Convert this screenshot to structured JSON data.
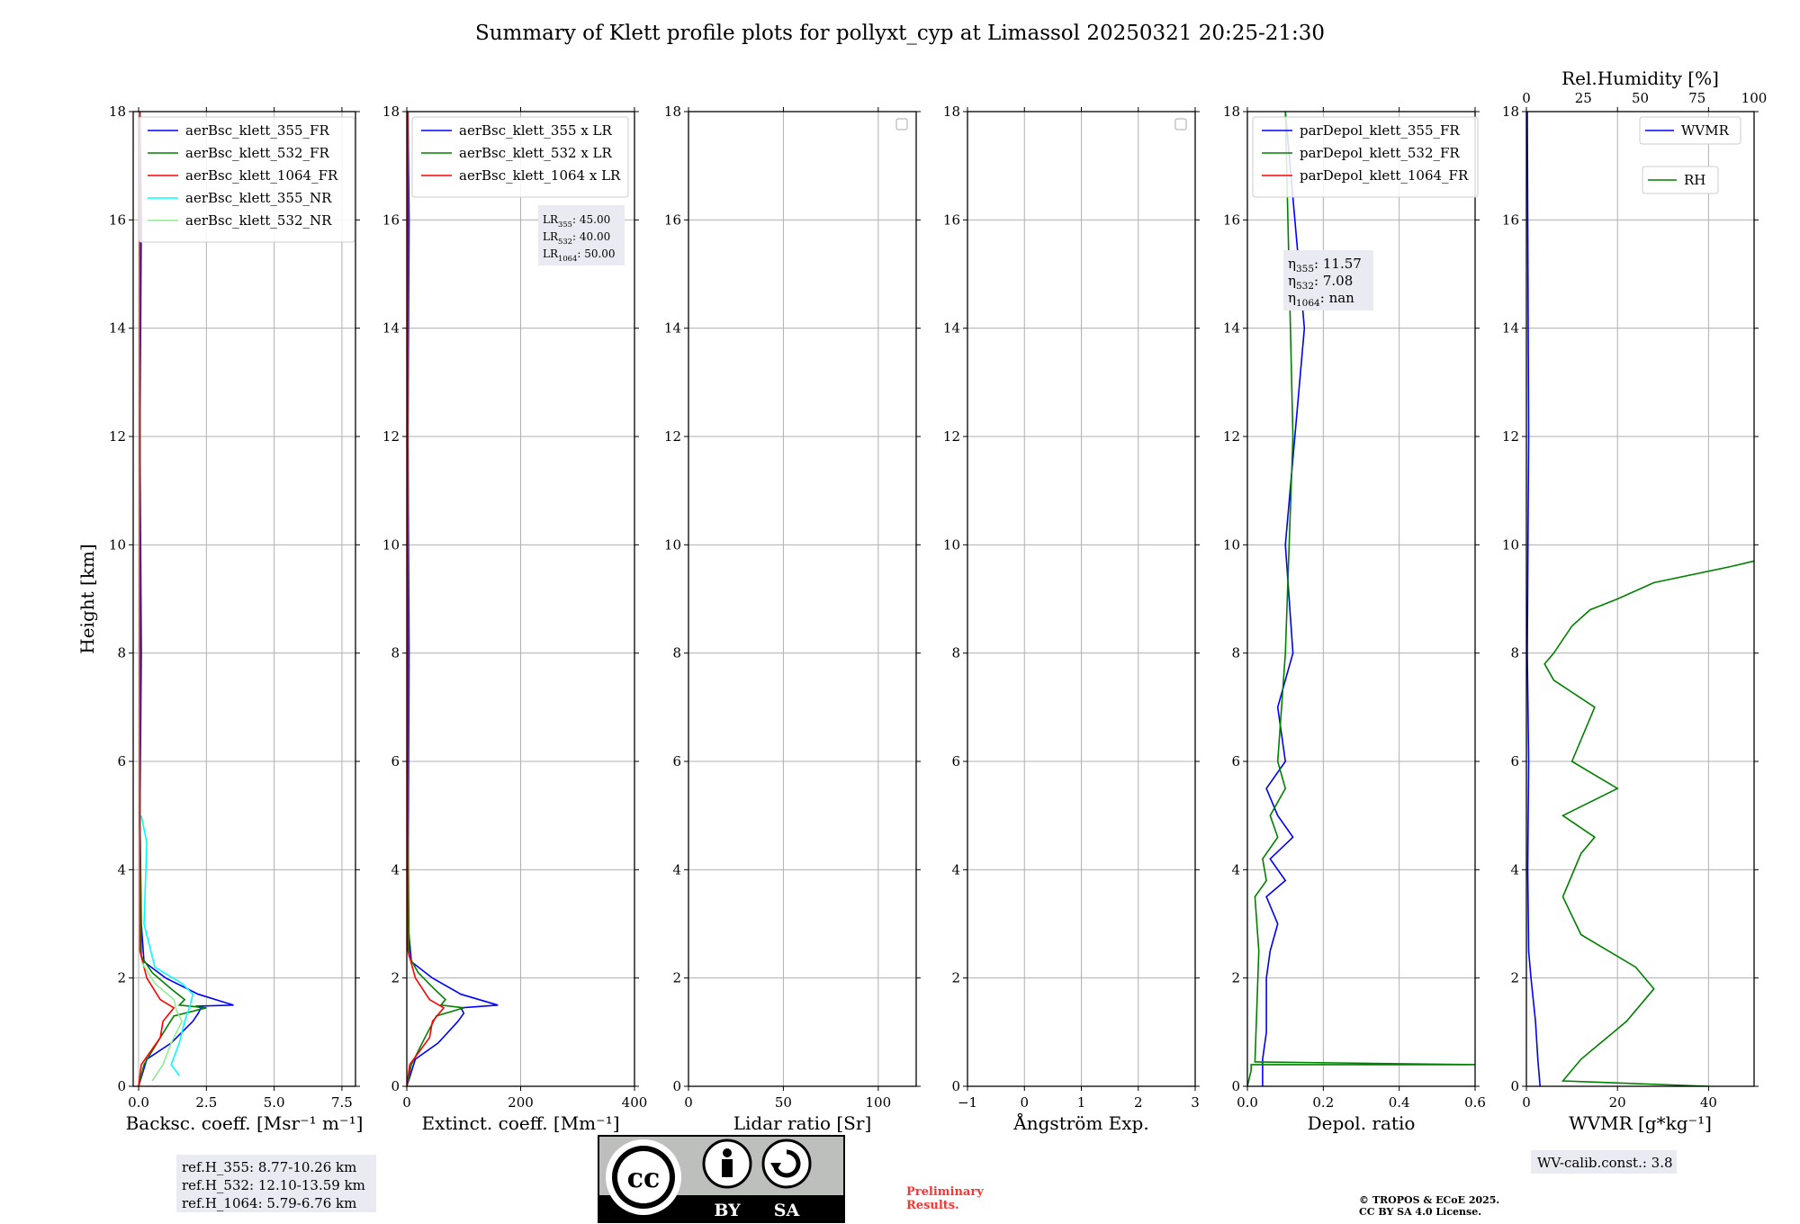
{
  "title": "Summary of Klett profile plots for pollyxt_cyp at Limassol 20250321 20:25-21:30",
  "colors": {
    "blue": "#0000ff",
    "green": "#008000",
    "red": "#ff0000",
    "cyan": "#00ffff",
    "lightgreen": "#90ee90",
    "grid": "#b0b0b0",
    "box": "#eaeaf2"
  },
  "chart_data": [
    {
      "type": "line",
      "name_key": "backscatter",
      "xlabel": "Backsc. coeff. [Msr⁻¹ m⁻¹]",
      "ylabel": "Height [km]",
      "xlim": [
        -0.2,
        8.0
      ],
      "ylim": [
        0,
        18
      ],
      "xticks": [
        0,
        2.5,
        5.0,
        7.5
      ],
      "xtick_labels": [
        "0.0",
        "2.5",
        "5.0",
        "7.5"
      ],
      "yticks": [
        0,
        2,
        4,
        6,
        8,
        10,
        12,
        14,
        16,
        18
      ],
      "grid": true,
      "legend": "upper-left",
      "series": [
        {
          "name": "aerBsc_klett_355_FR",
          "color": "#0000ff",
          "x": [
            0.0,
            0.3,
            1.2,
            2.0,
            2.2,
            2.3,
            2.1,
            3.5,
            2.2,
            1.0,
            0.2,
            0.1,
            0.05,
            0.1,
            0.05,
            0.1,
            0.05
          ],
          "y": [
            0.0,
            0.5,
            0.8,
            1.2,
            1.35,
            1.45,
            1.48,
            1.5,
            1.7,
            2.0,
            2.3,
            3.0,
            5.0,
            8.0,
            12.0,
            16.0,
            18.0
          ]
        },
        {
          "name": "aerBsc_klett_532_FR",
          "color": "#008000",
          "x": [
            0.0,
            0.2,
            0.8,
            1.3,
            2.5,
            1.5,
            1.7,
            1.2,
            0.5,
            0.1,
            0.05,
            0.05
          ],
          "y": [
            0.0,
            0.4,
            0.9,
            1.3,
            1.45,
            1.5,
            1.6,
            1.8,
            2.1,
            2.4,
            5.0,
            18.0
          ]
        },
        {
          "name": "aerBsc_klett_1064_FR",
          "color": "#ff0000",
          "x": [
            0.0,
            0.1,
            0.8,
            0.9,
            1.3,
            0.8,
            0.3,
            0.05,
            0.05
          ],
          "y": [
            0.0,
            0.4,
            0.9,
            1.2,
            1.45,
            1.6,
            2.0,
            2.5,
            18.0
          ]
        },
        {
          "name": "aerBsc_klett_355_NR",
          "color": "#00ffff",
          "x": [
            1.5,
            1.2,
            1.5,
            1.7,
            1.9,
            2.0,
            1.6,
            0.6,
            0.2,
            0.3,
            0.1
          ],
          "y": [
            0.2,
            0.4,
            0.8,
            1.2,
            1.5,
            1.7,
            1.9,
            2.2,
            3.0,
            4.5,
            5.0
          ]
        },
        {
          "name": "aerBsc_klett_532_NR",
          "color": "#90ee90",
          "x": [
            0.5,
            0.9,
            1.2,
            1.6,
            1.4,
            1.3,
            0.6,
            0.1
          ],
          "y": [
            0.1,
            0.4,
            0.8,
            1.2,
            1.4,
            1.6,
            1.9,
            2.3
          ]
        }
      ],
      "annotation": [
        "ref.H_355: 8.77-10.26 km",
        "ref.H_532: 12.10-13.59 km",
        "ref.H_1064: 5.79-6.76 km"
      ]
    },
    {
      "type": "line",
      "name_key": "extinction",
      "xlabel": "Extinct. coeff. [Mm⁻¹]",
      "xlim": [
        0,
        400
      ],
      "ylim": [
        0,
        18
      ],
      "xticks": [
        0,
        200,
        400
      ],
      "xtick_labels": [
        "0",
        "200",
        "400"
      ],
      "yticks": [
        0,
        2,
        4,
        6,
        8,
        10,
        12,
        14,
        16,
        18
      ],
      "grid": true,
      "legend": "upper-left",
      "series": [
        {
          "name": "aerBsc_klett_355 x LR",
          "color": "#0000ff",
          "x": [
            0,
            15,
            55,
            90,
            100,
            95,
            160,
            95,
            45,
            8,
            2,
            4,
            2,
            4,
            2
          ],
          "y": [
            0.0,
            0.5,
            0.8,
            1.2,
            1.35,
            1.45,
            1.5,
            1.7,
            2.0,
            2.3,
            3.0,
            8.0,
            12.0,
            16.0,
            18.0
          ]
        },
        {
          "name": "aerBsc_klett_532 x LR",
          "color": "#008000",
          "x": [
            0,
            8,
            32,
            52,
            100,
            60,
            68,
            48,
            20,
            4,
            2,
            2
          ],
          "y": [
            0.0,
            0.4,
            0.9,
            1.3,
            1.45,
            1.5,
            1.6,
            1.8,
            2.1,
            2.4,
            5.0,
            18.0
          ]
        },
        {
          "name": "aerBsc_klett_1064 x LR",
          "color": "#ff0000",
          "x": [
            0,
            5,
            40,
            45,
            65,
            40,
            15,
            2,
            2
          ],
          "y": [
            0.0,
            0.4,
            0.9,
            1.2,
            1.45,
            1.6,
            2.0,
            2.5,
            18.0
          ]
        }
      ],
      "lr_text": [
        {
          "sub": "355",
          "value": "45.00"
        },
        {
          "sub": "532",
          "value": "40.00"
        },
        {
          "sub": "1064",
          "value": "50.00"
        }
      ]
    },
    {
      "type": "line",
      "name_key": "lidar_ratio",
      "xlabel": "Lidar ratio [Sr]",
      "xlim": [
        0,
        120
      ],
      "ylim": [
        0,
        18
      ],
      "xticks": [
        0,
        50,
        100
      ],
      "xtick_labels": [
        "0",
        "50",
        "100"
      ],
      "yticks": [
        0,
        2,
        4,
        6,
        8,
        10,
        12,
        14,
        16,
        18
      ],
      "grid": true,
      "series": []
    },
    {
      "type": "line",
      "name_key": "angstrom",
      "xlabel": "Ångström Exp.",
      "xlim": [
        -1,
        3
      ],
      "ylim": [
        0,
        18
      ],
      "xticks": [
        -1,
        0,
        1,
        2,
        3
      ],
      "xtick_labels": [
        "−1",
        "0",
        "1",
        "2",
        "3"
      ],
      "yticks": [
        0,
        2,
        4,
        6,
        8,
        10,
        12,
        14,
        16,
        18
      ],
      "grid": true,
      "series": []
    },
    {
      "type": "line",
      "name_key": "depol",
      "xlabel": "Depol. ratio",
      "xlim": [
        0,
        0.6
      ],
      "ylim": [
        0,
        18
      ],
      "xticks": [
        0,
        0.2,
        0.4,
        0.6
      ],
      "xtick_labels": [
        "0.0",
        "0.2",
        "0.4",
        "0.6"
      ],
      "yticks": [
        0,
        2,
        4,
        6,
        8,
        10,
        12,
        14,
        16,
        18
      ],
      "grid": true,
      "legend": "upper-left",
      "series": [
        {
          "name": "parDepol_klett_355_FR",
          "color": "#0000ff",
          "x": [
            0.04,
            0.04,
            0.05,
            0.05,
            0.06,
            0.08,
            0.05,
            0.1,
            0.06,
            0.12,
            0.08,
            0.05,
            0.1,
            0.08,
            0.12,
            0.1,
            0.15,
            0.1
          ],
          "y": [
            0.0,
            0.5,
            1.0,
            2.0,
            2.5,
            3.0,
            3.5,
            3.8,
            4.2,
            4.6,
            5.0,
            5.5,
            6.0,
            7.0,
            8.0,
            10.0,
            14.0,
            18.0
          ]
        },
        {
          "name": "parDepol_klett_532_FR",
          "color": "#008000",
          "x": [
            0.0,
            0.01,
            0.01,
            0.6,
            0.02,
            0.03,
            0.02,
            0.05,
            0.04,
            0.08,
            0.06,
            0.1,
            0.08,
            0.1,
            0.12,
            0.1
          ],
          "y": [
            0.0,
            0.3,
            0.4,
            0.4,
            0.45,
            2.5,
            3.5,
            3.8,
            4.2,
            4.6,
            5.0,
            5.5,
            6.0,
            8.0,
            12.0,
            18.0
          ]
        },
        {
          "name": "parDepol_klett_1064_FR",
          "color": "#ff0000",
          "x": [],
          "y": []
        }
      ],
      "eta_text": [
        {
          "sub": "355",
          "value": "11.57"
        },
        {
          "sub": "532",
          "value": "7.08"
        },
        {
          "sub": "1064",
          "value": "nan"
        }
      ]
    },
    {
      "type": "line",
      "name_key": "wvmr",
      "xlabel": "WVMR [g*kg⁻¹]",
      "x2label": "Rel.Humidity [%]",
      "xlim": [
        0,
        50
      ],
      "x2lim": [
        0,
        100
      ],
      "ylim": [
        0,
        18
      ],
      "xticks": [
        0,
        20,
        40
      ],
      "xtick_labels": [
        "0",
        "20",
        "40"
      ],
      "x2ticks": [
        0,
        25,
        50,
        75,
        100
      ],
      "x2tick_labels": [
        "0",
        "25",
        "50",
        "75",
        "100"
      ],
      "yticks": [
        0,
        2,
        4,
        6,
        8,
        10,
        12,
        14,
        16,
        18
      ],
      "grid": true,
      "series": [
        {
          "name": "WVMR",
          "color": "#0000ff",
          "x": [
            3.0,
            2.5,
            2.0,
            1.0,
            0.5,
            0.3,
            0.5,
            0.2,
            0.5,
            0.3,
            0.2
          ],
          "y": [
            0.0,
            0.5,
            1.2,
            2.0,
            2.5,
            4.0,
            6.0,
            8.0,
            12.0,
            16.0,
            18.0
          ]
        },
        {
          "name": "RH",
          "color": "#008000",
          "x": [
            40,
            8,
            12,
            22,
            28,
            24,
            12,
            8,
            12,
            15,
            8,
            20,
            10,
            15,
            6,
            4,
            6,
            10,
            14,
            20,
            28,
            45,
            60,
            90,
            100
          ],
          "y": [
            0.0,
            0.1,
            0.5,
            1.2,
            1.8,
            2.2,
            2.8,
            3.5,
            4.3,
            4.6,
            5.0,
            5.5,
            6.0,
            7.0,
            7.5,
            7.8,
            8.0,
            8.5,
            8.8,
            9.0,
            9.3,
            9.6,
            9.9,
            10.1,
            10.3
          ]
        }
      ],
      "annotation": "WV-calib.const.: 3.8"
    }
  ],
  "footer": {
    "license_labels": [
      "BY",
      "SA"
    ],
    "license_logo": "cc-by-sa-icon",
    "preliminary": [
      "Preliminary",
      "Results."
    ],
    "copyright": [
      "© TROPOS & ECoE 2025.",
      "CC BY SA 4.0 License."
    ]
  }
}
